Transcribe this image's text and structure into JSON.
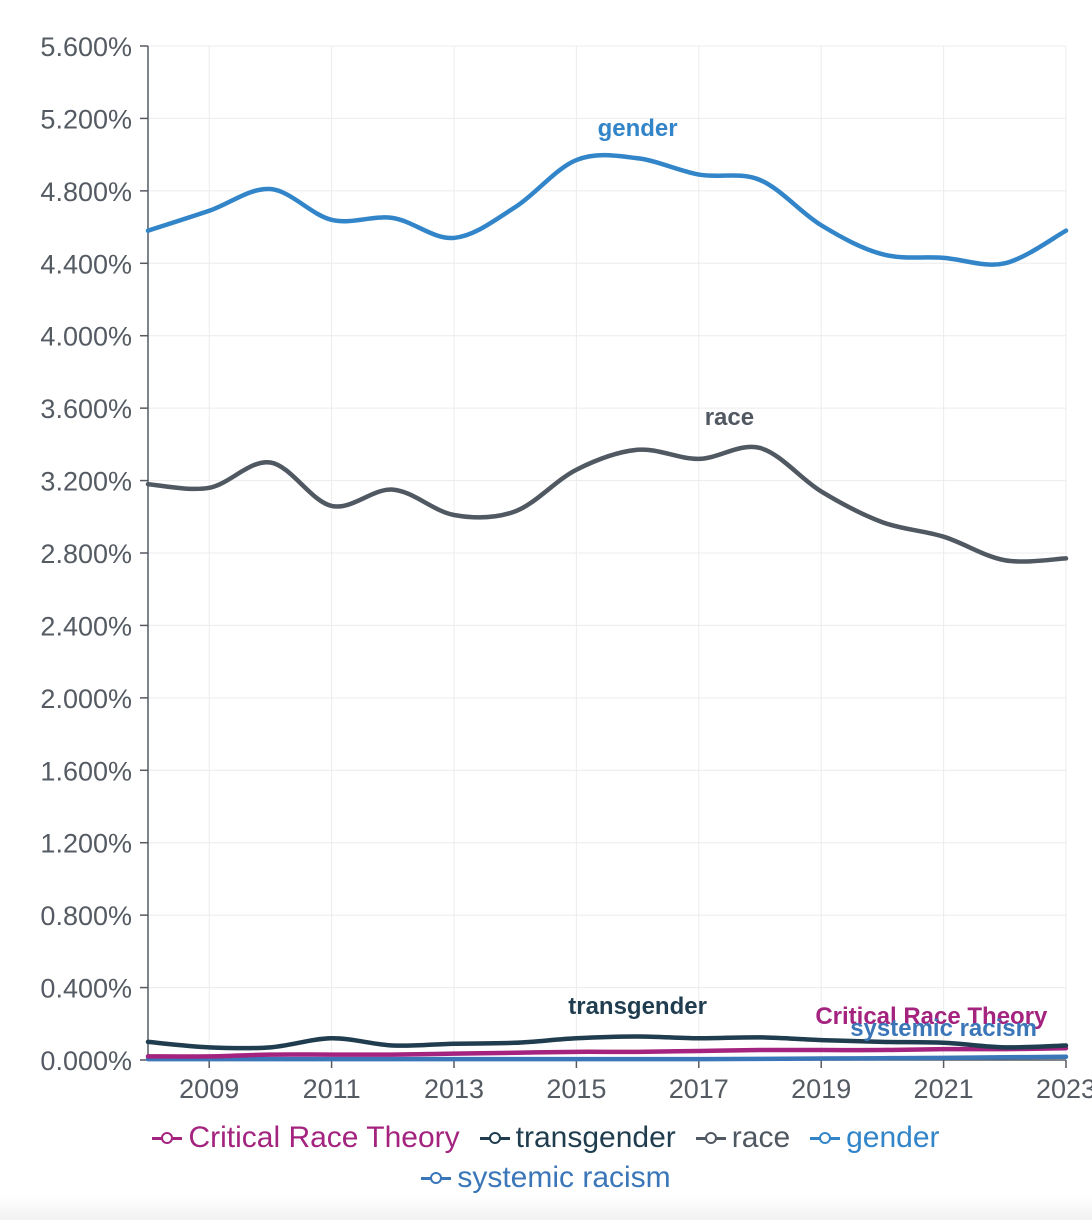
{
  "chart_data": {
    "type": "line",
    "title": "",
    "xlabel": "",
    "ylabel": "",
    "x": [
      2008,
      2009,
      2010,
      2011,
      2012,
      2013,
      2014,
      2015,
      2016,
      2017,
      2018,
      2019,
      2020,
      2021,
      2022,
      2023
    ],
    "xlim": [
      2008,
      2023
    ],
    "ylim": [
      0,
      5.6
    ],
    "grid": true,
    "x_ticks": [
      "2009",
      "2011",
      "2013",
      "2015",
      "2017",
      "2019",
      "2021",
      "2023"
    ],
    "y_ticks": [
      "0.000%",
      "0.400%",
      "0.800%",
      "1.200%",
      "1.600%",
      "2.000%",
      "2.400%",
      "2.800%",
      "3.200%",
      "3.600%",
      "4.000%",
      "4.400%",
      "4.800%",
      "5.200%",
      "5.600%"
    ],
    "series": [
      {
        "id": "crt",
        "name": "Critical Race Theory",
        "color": "#a3237f",
        "label": "Critical Race Theory",
        "values": [
          0.02,
          0.02,
          0.03,
          0.03,
          0.03,
          0.035,
          0.04,
          0.045,
          0.045,
          0.05,
          0.055,
          0.055,
          0.055,
          0.06,
          0.06,
          0.065
        ]
      },
      {
        "id": "transgender",
        "name": "transgender",
        "color": "#1f3d4f",
        "label": "transgender",
        "values": [
          0.1,
          0.07,
          0.07,
          0.12,
          0.08,
          0.09,
          0.095,
          0.12,
          0.13,
          0.12,
          0.125,
          0.11,
          0.1,
          0.095,
          0.07,
          0.08
        ]
      },
      {
        "id": "race",
        "name": "race",
        "color": "#505862",
        "label": "race",
        "values": [
          3.18,
          3.16,
          3.3,
          3.06,
          3.15,
          3.01,
          3.03,
          3.26,
          3.37,
          3.32,
          3.38,
          3.14,
          2.97,
          2.89,
          2.76,
          2.77
        ]
      },
      {
        "id": "gender",
        "name": "gender",
        "color": "#3185c8",
        "label": "gender",
        "values": [
          4.58,
          4.69,
          4.81,
          4.64,
          4.65,
          4.54,
          4.71,
          4.97,
          4.98,
          4.89,
          4.86,
          4.61,
          4.45,
          4.43,
          4.4,
          4.58
        ]
      },
      {
        "id": "systemic",
        "name": "systemic racism",
        "color": "#3a76b8",
        "label": "systemic racism",
        "values": [
          0.005,
          0.005,
          0.005,
          0.005,
          0.005,
          0.005,
          0.005,
          0.005,
          0.005,
          0.005,
          0.006,
          0.008,
          0.01,
          0.012,
          0.015,
          0.018
        ]
      }
    ]
  },
  "legend": [
    {
      "label": "Critical Race Theory",
      "color": "#a3237f"
    },
    {
      "label": "transgender",
      "color": "#1f3d4f"
    },
    {
      "label": "race",
      "color": "#505862"
    },
    {
      "label": "gender",
      "color": "#3185c8"
    },
    {
      "label": "systemic racism",
      "color": "#3a76b8"
    }
  ]
}
